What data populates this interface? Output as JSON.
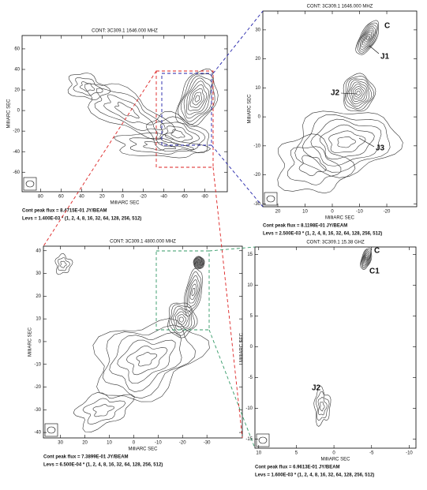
{
  "panels": [
    {
      "title": "CONT: 3C309.1   1646.000 MHZ",
      "xlabel": "MilliARC SEC",
      "ylabel": "MilliARC SEC",
      "xlim": [
        98,
        -102
      ],
      "ylim": [
        -79,
        73
      ],
      "xticks": [
        80,
        60,
        40,
        20,
        0,
        -20,
        -40,
        -60,
        -80
      ],
      "yticks": [
        60,
        40,
        20,
        0,
        -20,
        -40,
        -60
      ],
      "peak": "Cont peak flux = 8.4715E-01 JY/BEAM",
      "levs": "Levs = 1.400E-03 * (1, 2, 4, 8, 16, 32, 64, 128, 256, 512)",
      "labels": []
    },
    {
      "title": "CONT: 3C309.1   1646.000 MHZ",
      "xlabel": "MilliARC SEC",
      "ylabel": "MilliARC SEC",
      "xlim": [
        25.5,
        -31
      ],
      "ylim": [
        -31,
        36.5
      ],
      "xticks": [
        20,
        10,
        0,
        -10,
        -20
      ],
      "yticks": [
        30,
        20,
        10,
        0,
        -10,
        -20,
        -30
      ],
      "peak": "Cont peak flux = 8.1198E-01 JY/BEAM",
      "levs": "Levs = 2.500E-03 * (1, 2, 4, 8, 16, 32, 64, 128, 256, 512)",
      "labels": [
        "C",
        "J1",
        "J2",
        "J3"
      ]
    },
    {
      "title": "CONT: 3C309.1   4800.000 MHZ",
      "xlabel": "MilliARC SEC",
      "ylabel": "MilliARC SEC",
      "xlim": [
        37,
        -44.5
      ],
      "ylim": [
        -42.4,
        42
      ],
      "xticks": [
        30,
        20,
        10,
        0,
        -10,
        -20,
        -30
      ],
      "yticks": [
        40,
        30,
        20,
        10,
        0,
        -10,
        -20,
        -30,
        -40
      ],
      "peak": "Cont peak flux = 7.3899E-01 JY/BEAM",
      "levs": "Levs = 6.500E-04 * (1, 2, 4, 8, 16, 32, 64, 128, 256, 512)",
      "labels": []
    },
    {
      "title": "CONT: 3C309.1   15.38 GHZ",
      "xlabel": "MilliARC SEC",
      "ylabel": "MilliARC SEC",
      "xlim": [
        10.5,
        -10.9
      ],
      "ylim": [
        -16.5,
        16.2
      ],
      "xticks": [
        10,
        5,
        0,
        -5,
        -10
      ],
      "yticks": [
        15,
        10,
        5,
        0,
        -5,
        -10,
        -15
      ],
      "peak": "Cont peak flux = 6.9613E-01 JY/BEAM",
      "levs": "Levs = 1.600E-03 * (1, 2, 4, 8, 16, 32, 64, 128, 256, 512)",
      "labels": [
        "C",
        "C1",
        "J2"
      ]
    }
  ]
}
